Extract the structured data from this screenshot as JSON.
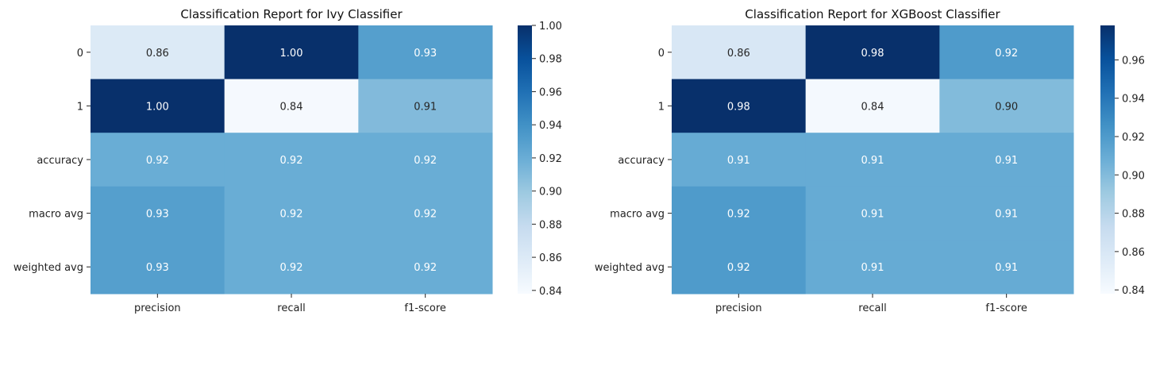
{
  "chart_data": [
    {
      "type": "heatmap",
      "title": "Classification Report for Ivy Classifier",
      "rows": [
        "0",
        "1",
        "accuracy",
        "macro avg",
        "weighted avg"
      ],
      "columns": [
        "precision",
        "recall",
        "f1-score"
      ],
      "values": [
        [
          0.86,
          1.0,
          0.93
        ],
        [
          1.0,
          0.84,
          0.91
        ],
        [
          0.92,
          0.92,
          0.92
        ],
        [
          0.93,
          0.92,
          0.92
        ],
        [
          0.93,
          0.92,
          0.92
        ]
      ],
      "labels": [
        [
          "0.86",
          "1.00",
          "0.93"
        ],
        [
          "1.00",
          "0.84",
          "0.91"
        ],
        [
          "0.92",
          "0.92",
          "0.92"
        ],
        [
          "0.93",
          "0.92",
          "0.92"
        ],
        [
          "0.93",
          "0.92",
          "0.92"
        ]
      ],
      "colormap": "Blues",
      "colorbar": {
        "range": [
          0.838,
          1.0
        ],
        "ticks": [
          0.84,
          0.86,
          0.88,
          0.9,
          0.92,
          0.94,
          0.96,
          0.98,
          1.0
        ],
        "tick_labels": [
          "0.84",
          "0.86",
          "0.88",
          "0.90",
          "0.92",
          "0.94",
          "0.96",
          "0.98",
          "1.00"
        ]
      }
    },
    {
      "type": "heatmap",
      "title": "Classification Report for XGBoost Classifier",
      "rows": [
        "0",
        "1",
        "accuracy",
        "macro avg",
        "weighted avg"
      ],
      "columns": [
        "precision",
        "recall",
        "f1-score"
      ],
      "values": [
        [
          0.86,
          0.98,
          0.92
        ],
        [
          0.98,
          0.84,
          0.9
        ],
        [
          0.91,
          0.91,
          0.91
        ],
        [
          0.92,
          0.91,
          0.91
        ],
        [
          0.92,
          0.91,
          0.91
        ]
      ],
      "labels": [
        [
          "0.86",
          "0.98",
          "0.92"
        ],
        [
          "0.98",
          "0.84",
          "0.90"
        ],
        [
          "0.91",
          "0.91",
          "0.91"
        ],
        [
          "0.92",
          "0.91",
          "0.91"
        ],
        [
          "0.92",
          "0.91",
          "0.91"
        ]
      ],
      "colormap": "Blues",
      "colorbar": {
        "range": [
          0.838,
          0.978
        ],
        "ticks": [
          0.84,
          0.86,
          0.88,
          0.9,
          0.92,
          0.94,
          0.96
        ],
        "tick_labels": [
          "0.84",
          "0.86",
          "0.88",
          "0.90",
          "0.92",
          "0.94",
          "0.96"
        ]
      }
    }
  ]
}
